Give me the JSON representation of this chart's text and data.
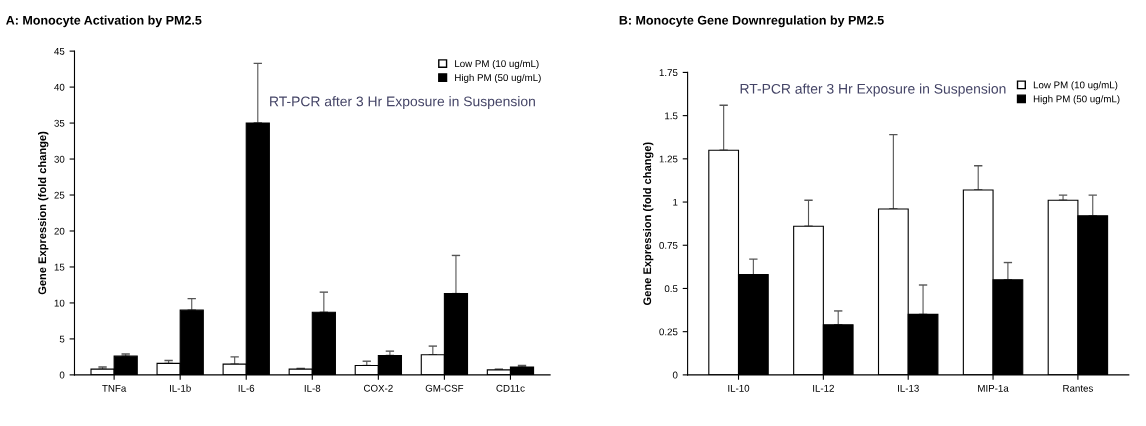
{
  "chart_data": [
    {
      "type": "bar",
      "title": "A: Monocyte Activation by PM2.5",
      "ylabel": "Gene Expression (fold change)",
      "categories": [
        "TNFa",
        "IL-1b",
        "IL-6",
        "IL-8",
        "COX-2",
        "GM-CSF",
        "CD11c"
      ],
      "series": [
        {
          "name": "Low PM (10 ug/mL)",
          "color": "#ffffff",
          "values": [
            0.8,
            1.6,
            1.5,
            0.8,
            1.3,
            2.8,
            0.7
          ],
          "errors": [
            [
              0.8,
              1.1
            ],
            [
              1.6,
              2.0
            ],
            [
              1.5,
              2.5
            ],
            [
              0.8,
              0.9
            ],
            [
              1.3,
              1.9
            ],
            [
              2.8,
              4.0
            ],
            [
              0.7,
              0.8
            ]
          ]
        },
        {
          "name": "High PM (50 ug/mL)",
          "color": "#000000",
          "values": [
            2.6,
            9.0,
            35,
            8.7,
            2.7,
            11.3,
            1.1
          ],
          "errors": [
            [
              2.6,
              2.9
            ],
            [
              9.0,
              10.6
            ],
            [
              35,
              43.3
            ],
            [
              8.7,
              11.5
            ],
            [
              2.7,
              3.3
            ],
            [
              11.3,
              16.6
            ],
            [
              1.1,
              1.3
            ]
          ]
        }
      ],
      "ylim": [
        0,
        45
      ],
      "yticks": [
        0,
        5,
        10,
        15,
        20,
        25,
        30,
        35,
        40,
        45
      ],
      "annotations": [
        "RT-PCR after 3 Hr Exposure in Suspension"
      ],
      "legend": "top right",
      "grid": false
    },
    {
      "type": "bar",
      "title": "B: Monocyte Gene Downregulation by PM2.5",
      "ylabel": "Gene Expression (fold change)",
      "categories": [
        "IL-10",
        "IL-12",
        "IL-13",
        "MIP-1a",
        "Rantes"
      ],
      "series": [
        {
          "name": "Low PM (10 ug/mL)",
          "color": "#ffffff",
          "values": [
            1.3,
            0.86,
            0.96,
            1.07,
            1.01
          ],
          "errors": [
            [
              1.3,
              1.56
            ],
            [
              0.86,
              1.01
            ],
            [
              0.96,
              1.39
            ],
            [
              1.07,
              1.21
            ],
            [
              1.01,
              1.04
            ]
          ]
        },
        {
          "name": "High PM (50 ug/mL)",
          "color": "#000000",
          "values": [
            0.58,
            0.29,
            0.35,
            0.55,
            0.92
          ],
          "errors": [
            [
              0.58,
              0.67
            ],
            [
              0.29,
              0.37
            ],
            [
              0.35,
              0.52
            ],
            [
              0.55,
              0.65
            ],
            [
              0.92,
              1.04
            ]
          ]
        }
      ],
      "ylim": [
        0,
        1.75
      ],
      "yticks": [
        0,
        0.25,
        0.5,
        0.75,
        1,
        1.25,
        1.5,
        1.75
      ],
      "annotations": [
        "RT-PCR after 3 Hr Exposure in Suspension"
      ],
      "legend": "top right",
      "grid": false
    }
  ]
}
